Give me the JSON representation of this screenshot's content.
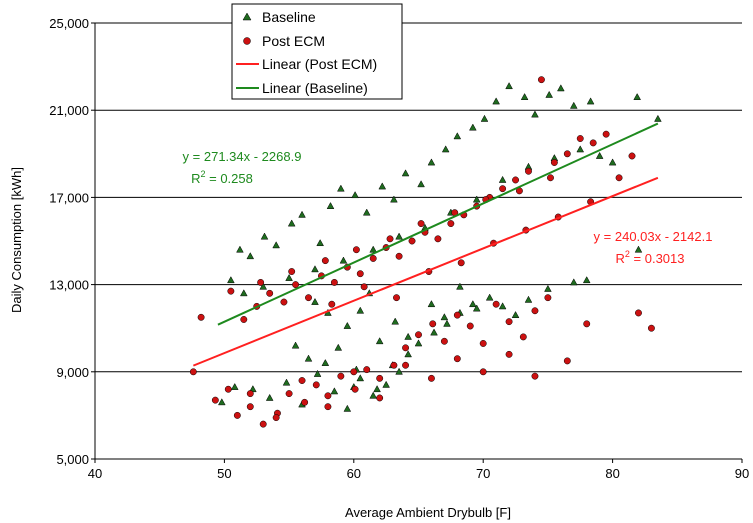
{
  "chart_data": {
    "type": "scatter",
    "title": "",
    "xlabel": "Average Ambient Drybulb [F]",
    "ylabel": "Daily Consumption [kWh]",
    "xlim": [
      40,
      90
    ],
    "ylim": [
      5000,
      25000
    ],
    "x_ticks": [
      "40",
      "50",
      "60",
      "70",
      "80",
      "90"
    ],
    "y_ticks": [
      "5,000",
      "9,000",
      "13,000",
      "17,000",
      "21,000",
      "25,000"
    ],
    "y_tick_values": [
      5000,
      9000,
      13000,
      17000,
      21000,
      25000
    ],
    "x_tick_values": [
      40,
      50,
      60,
      70,
      80,
      90
    ],
    "grid": "horizontal",
    "legend_position": "top-left",
    "legend": [
      {
        "label": "Baseline",
        "marker": "triangle",
        "color": "#1f6b1f"
      },
      {
        "label": "Post ECM",
        "marker": "circle",
        "color": "#cc1111"
      },
      {
        "label": "Linear (Post ECM)",
        "marker": "line",
        "color": "#ff2020"
      },
      {
        "label": "Linear (Baseline)",
        "marker": "line",
        "color": "#1e8a1e"
      }
    ],
    "series": [
      {
        "name": "Baseline",
        "marker": "triangle",
        "color": "#1f6b1f",
        "points": [
          [
            50.5,
            13200
          ],
          [
            51.2,
            14600
          ],
          [
            52.0,
            14300
          ],
          [
            53.1,
            15200
          ],
          [
            54.0,
            14800
          ],
          [
            55.2,
            15800
          ],
          [
            56.0,
            16200
          ],
          [
            57.4,
            14900
          ],
          [
            58.2,
            16600
          ],
          [
            59.0,
            17400
          ],
          [
            60.1,
            17100
          ],
          [
            61.0,
            16300
          ],
          [
            62.2,
            17500
          ],
          [
            63.1,
            16900
          ],
          [
            64.0,
            18100
          ],
          [
            65.2,
            17600
          ],
          [
            66.0,
            18600
          ],
          [
            67.1,
            19200
          ],
          [
            68.0,
            19800
          ],
          [
            69.2,
            20200
          ],
          [
            70.1,
            20600
          ],
          [
            71.0,
            21400
          ],
          [
            72.0,
            22100
          ],
          [
            73.2,
            21600
          ],
          [
            74.0,
            20800
          ],
          [
            75.1,
            21700
          ],
          [
            76.0,
            22000
          ],
          [
            77.0,
            21200
          ],
          [
            78.3,
            21400
          ],
          [
            81.9,
            21600
          ],
          [
            83.5,
            20600
          ],
          [
            51.5,
            12600
          ],
          [
            53.0,
            12900
          ],
          [
            55.0,
            13300
          ],
          [
            57.0,
            13700
          ],
          [
            59.2,
            14100
          ],
          [
            61.5,
            14600
          ],
          [
            63.5,
            15200
          ],
          [
            65.5,
            15600
          ],
          [
            67.5,
            16300
          ],
          [
            69.5,
            16900
          ],
          [
            71.5,
            17800
          ],
          [
            73.5,
            18400
          ],
          [
            75.5,
            18800
          ],
          [
            77.5,
            19200
          ],
          [
            79.0,
            18900
          ],
          [
            80.0,
            18600
          ],
          [
            52.2,
            8200
          ],
          [
            53.5,
            7800
          ],
          [
            54.8,
            8500
          ],
          [
            56.0,
            7500
          ],
          [
            57.2,
            8900
          ],
          [
            58.5,
            8100
          ],
          [
            59.5,
            7300
          ],
          [
            60.5,
            8700
          ],
          [
            61.5,
            7900
          ],
          [
            62.5,
            8400
          ],
          [
            63.0,
            9300
          ],
          [
            64.2,
            9800
          ],
          [
            65.0,
            10300
          ],
          [
            66.2,
            10800
          ],
          [
            67.2,
            11200
          ],
          [
            68.2,
            11700
          ],
          [
            69.2,
            12100
          ],
          [
            70.5,
            12400
          ],
          [
            71.5,
            12000
          ],
          [
            72.5,
            11600
          ],
          [
            73.5,
            12300
          ],
          [
            75.0,
            12800
          ],
          [
            77.0,
            13100
          ],
          [
            78.0,
            13200
          ],
          [
            82.0,
            14600
          ],
          [
            57.0,
            12200
          ],
          [
            58.0,
            11700
          ],
          [
            59.5,
            11100
          ],
          [
            60.5,
            11800
          ],
          [
            61.2,
            12600
          ],
          [
            62.0,
            10400
          ],
          [
            63.2,
            11300
          ],
          [
            64.2,
            10600
          ],
          [
            66.0,
            12100
          ],
          [
            67.0,
            11500
          ],
          [
            68.2,
            12900
          ],
          [
            69.5,
            11900
          ],
          [
            55.5,
            10200
          ],
          [
            56.5,
            9600
          ],
          [
            57.8,
            9400
          ],
          [
            58.8,
            10100
          ],
          [
            60.2,
            9100
          ],
          [
            61.8,
            8200
          ],
          [
            63.5,
            9000
          ],
          [
            49.8,
            7600
          ],
          [
            50.8,
            8300
          ],
          [
            60.0,
            8300
          ]
        ]
      },
      {
        "name": "Post ECM",
        "marker": "circle",
        "color": "#cc1111",
        "points": [
          [
            47.6,
            9000
          ],
          [
            48.2,
            11500
          ],
          [
            49.3,
            7700
          ],
          [
            50.3,
            8200
          ],
          [
            51.0,
            7000
          ],
          [
            52.0,
            7400
          ],
          [
            53.0,
            6600
          ],
          [
            54.1,
            7100
          ],
          [
            55.0,
            8000
          ],
          [
            56.2,
            7600
          ],
          [
            57.1,
            8400
          ],
          [
            58.0,
            7900
          ],
          [
            59.0,
            8800
          ],
          [
            60.1,
            8200
          ],
          [
            61.0,
            9100
          ],
          [
            62.0,
            8700
          ],
          [
            63.1,
            9300
          ],
          [
            64.0,
            10100
          ],
          [
            65.0,
            10700
          ],
          [
            66.1,
            11200
          ],
          [
            67.0,
            10400
          ],
          [
            68.0,
            11600
          ],
          [
            69.0,
            11100
          ],
          [
            70.0,
            10300
          ],
          [
            71.0,
            12100
          ],
          [
            72.0,
            11300
          ],
          [
            73.1,
            10600
          ],
          [
            74.0,
            11800
          ],
          [
            75.0,
            12400
          ],
          [
            76.5,
            9500
          ],
          [
            78.0,
            11200
          ],
          [
            82.0,
            11700
          ],
          [
            83.0,
            11000
          ],
          [
            50.5,
            12700
          ],
          [
            51.5,
            11400
          ],
          [
            52.5,
            12000
          ],
          [
            53.5,
            12600
          ],
          [
            54.6,
            12200
          ],
          [
            55.5,
            13000
          ],
          [
            56.5,
            12400
          ],
          [
            57.5,
            13400
          ],
          [
            58.5,
            13100
          ],
          [
            59.5,
            13800
          ],
          [
            60.5,
            13500
          ],
          [
            61.5,
            14200
          ],
          [
            62.5,
            14700
          ],
          [
            63.5,
            14300
          ],
          [
            64.5,
            15000
          ],
          [
            65.5,
            15400
          ],
          [
            66.5,
            15100
          ],
          [
            67.5,
            15800
          ],
          [
            68.5,
            16200
          ],
          [
            69.5,
            16600
          ],
          [
            70.5,
            17000
          ],
          [
            71.5,
            17400
          ],
          [
            72.5,
            17800
          ],
          [
            73.5,
            18200
          ],
          [
            74.5,
            22400
          ],
          [
            75.5,
            18600
          ],
          [
            76.5,
            19000
          ],
          [
            77.5,
            19700
          ],
          [
            78.5,
            19500
          ],
          [
            79.5,
            19900
          ],
          [
            80.5,
            17900
          ],
          [
            81.5,
            18900
          ],
          [
            52.8,
            13100
          ],
          [
            55.2,
            13600
          ],
          [
            57.8,
            14100
          ],
          [
            60.2,
            14600
          ],
          [
            62.8,
            15100
          ],
          [
            65.2,
            15800
          ],
          [
            67.8,
            16300
          ],
          [
            70.2,
            16900
          ],
          [
            72.8,
            17300
          ],
          [
            75.2,
            17900
          ],
          [
            58.3,
            12100
          ],
          [
            60.8,
            12900
          ],
          [
            63.3,
            12400
          ],
          [
            65.8,
            13600
          ],
          [
            68.3,
            14000
          ],
          [
            70.8,
            14900
          ],
          [
            73.3,
            15500
          ],
          [
            75.8,
            16100
          ],
          [
            78.3,
            16800
          ],
          [
            64.0,
            9300
          ],
          [
            66.0,
            8700
          ],
          [
            68.0,
            9600
          ],
          [
            70.0,
            9000
          ],
          [
            72.0,
            9800
          ],
          [
            74.0,
            8800
          ],
          [
            52.0,
            8000
          ],
          [
            54.0,
            6900
          ],
          [
            56.0,
            8600
          ],
          [
            58.0,
            7400
          ],
          [
            60.0,
            9000
          ],
          [
            62.0,
            7800
          ]
        ]
      },
      {
        "name": "Linear (Post ECM)",
        "type": "line",
        "color": "#ff2020",
        "points": [
          [
            47.6,
            9283
          ],
          [
            83.5,
            17900
          ]
        ]
      },
      {
        "name": "Linear (Baseline)",
        "type": "line",
        "color": "#1e8a1e",
        "points": [
          [
            49.5,
            11162
          ],
          [
            83.5,
            20388
          ]
        ]
      }
    ],
    "annotations": [
      {
        "text": "y = 271.34x - 2268.9",
        "r2_prefix": "R",
        "r2_sup": "2",
        "r2_suffix": " = 0.258",
        "color": "#1e8a1e"
      },
      {
        "text": "y = 240.03x - 2142.1",
        "r2_prefix": "R",
        "r2_sup": "2",
        "r2_suffix": " = 0.3013",
        "color": "#ff2020"
      }
    ]
  }
}
